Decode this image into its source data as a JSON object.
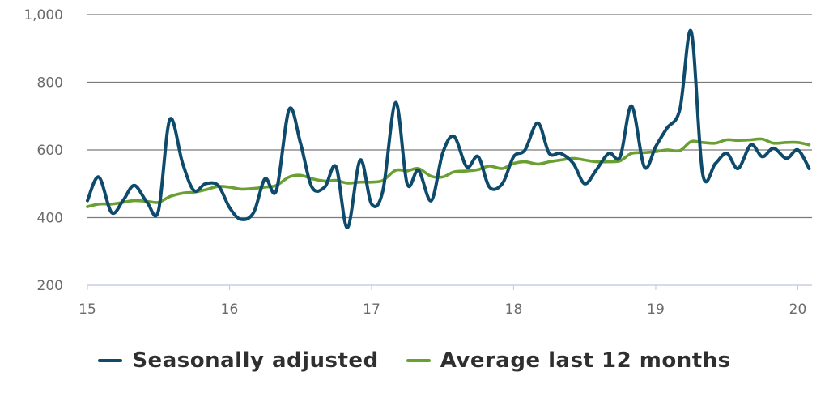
{
  "chart_data": {
    "type": "line",
    "ylim": [
      200,
      1000
    ],
    "yticks": [
      200,
      400,
      600,
      800,
      1000
    ],
    "ytick_labels": [
      "200",
      "400",
      "600",
      "800",
      "1,000"
    ],
    "xlim": [
      15,
      20.1
    ],
    "xticks": [
      15,
      16,
      17,
      18,
      19,
      20
    ],
    "xtick_labels": [
      "15",
      "16",
      "17",
      "18",
      "19",
      "20"
    ],
    "grid": "horizontal",
    "legend": "bottom-center",
    "series": [
      {
        "name": "Seasonally adjusted",
        "color": "#0d4a6b",
        "x": [
          15.0,
          15.08,
          15.17,
          15.25,
          15.33,
          15.42,
          15.5,
          15.58,
          15.67,
          15.75,
          15.83,
          15.92,
          16.0,
          16.08,
          16.17,
          16.25,
          16.33,
          16.42,
          16.5,
          16.58,
          16.67,
          16.75,
          16.83,
          16.92,
          17.0,
          17.08,
          17.17,
          17.25,
          17.33,
          17.42,
          17.5,
          17.58,
          17.67,
          17.75,
          17.83,
          17.92,
          18.0,
          18.08,
          18.17,
          18.25,
          18.33,
          18.42,
          18.5,
          18.58,
          18.67,
          18.75,
          18.83,
          18.92,
          19.0,
          19.08,
          19.17,
          19.25,
          19.33,
          19.42,
          19.5,
          19.58,
          19.67,
          19.75,
          19.83,
          19.92,
          20.0,
          20.08
        ],
        "values": [
          450,
          520,
          415,
          450,
          495,
          445,
          420,
          690,
          560,
          480,
          500,
          495,
          430,
          395,
          415,
          515,
          480,
          720,
          620,
          490,
          490,
          550,
          370,
          570,
          440,
          480,
          740,
          500,
          540,
          450,
          590,
          640,
          550,
          580,
          490,
          500,
          580,
          600,
          680,
          590,
          590,
          560,
          500,
          540,
          590,
          580,
          730,
          550,
          610,
          665,
          720,
          950,
          530,
          560,
          590,
          545,
          615,
          580,
          605,
          575,
          600,
          545
        ]
      },
      {
        "name": "Average last 12 months",
        "color": "#6a9f32",
        "x": [
          15.0,
          15.08,
          15.17,
          15.25,
          15.33,
          15.42,
          15.5,
          15.58,
          15.67,
          15.75,
          15.83,
          15.92,
          16.0,
          16.08,
          16.17,
          16.25,
          16.33,
          16.42,
          16.5,
          16.58,
          16.67,
          16.75,
          16.83,
          16.92,
          17.0,
          17.08,
          17.17,
          17.25,
          17.33,
          17.42,
          17.5,
          17.58,
          17.67,
          17.75,
          17.83,
          17.92,
          18.0,
          18.08,
          18.17,
          18.25,
          18.33,
          18.42,
          18.5,
          18.58,
          18.67,
          18.75,
          18.83,
          18.92,
          19.0,
          19.08,
          19.17,
          19.25,
          19.33,
          19.42,
          19.5,
          19.58,
          19.67,
          19.75,
          19.83,
          19.92,
          20.0,
          20.08
        ],
        "values": [
          432,
          440,
          440,
          445,
          450,
          448,
          445,
          462,
          472,
          475,
          482,
          492,
          490,
          484,
          486,
          490,
          495,
          520,
          525,
          515,
          508,
          510,
          502,
          505,
          505,
          510,
          540,
          538,
          545,
          522,
          520,
          535,
          538,
          542,
          552,
          545,
          560,
          565,
          558,
          565,
          570,
          575,
          570,
          565,
          565,
          568,
          590,
          592,
          595,
          600,
          598,
          625,
          622,
          620,
          630,
          628,
          630,
          632,
          620,
          622,
          622,
          615
        ]
      }
    ]
  }
}
